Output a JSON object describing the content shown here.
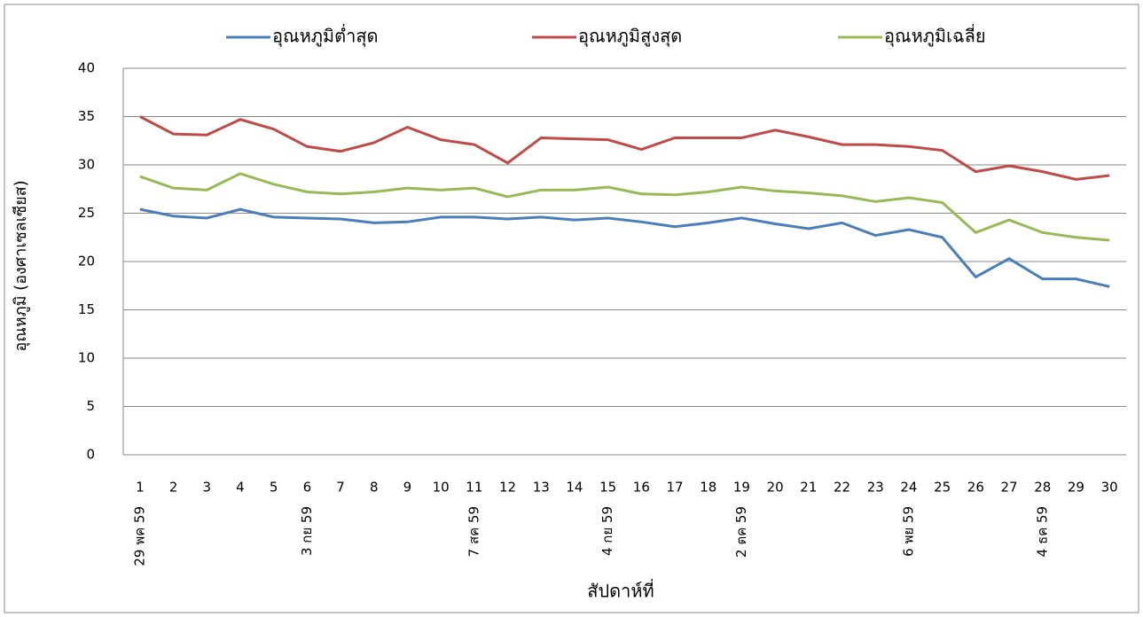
{
  "chart_data": {
    "type": "line",
    "x_label": "สัปดาห์ที่",
    "y_label": "อุณหภูมิ (องศาเซลเซียส)",
    "categories": [
      "1",
      "2",
      "3",
      "4",
      "5",
      "6",
      "7",
      "8",
      "9",
      "10",
      "11",
      "12",
      "13",
      "14",
      "15",
      "16",
      "17",
      "18",
      "19",
      "20",
      "21",
      "22",
      "23",
      "24",
      "25",
      "26",
      "27",
      "28",
      "29",
      "30"
    ],
    "date_labels": [
      "29 พค 59",
      null,
      null,
      null,
      null,
      "3 กย 59",
      null,
      null,
      null,
      null,
      "7 สค 59",
      null,
      null,
      null,
      "4 กย 59",
      null,
      null,
      null,
      "2 ตค 59",
      null,
      null,
      null,
      null,
      "6 พย 59",
      null,
      null,
      null,
      "4 ธค 59",
      null,
      null
    ],
    "series": [
      {
        "name": "อุณหภูมิต่ำสุด",
        "color": "#4a7ebb",
        "values": [
          25.4,
          24.7,
          24.5,
          25.4,
          24.6,
          24.5,
          24.4,
          24.0,
          24.1,
          24.6,
          24.6,
          24.4,
          24.6,
          24.3,
          24.5,
          24.1,
          23.6,
          24.0,
          24.5,
          23.9,
          23.4,
          24.0,
          22.7,
          23.3,
          22.5,
          18.4,
          20.3,
          18.2,
          18.2,
          17.4
        ]
      },
      {
        "name": "อุณหภูมิสูงสุด",
        "color": "#be4b48",
        "values": [
          35.0,
          33.2,
          33.1,
          34.7,
          33.7,
          31.9,
          31.4,
          32.3,
          33.9,
          32.6,
          32.1,
          30.2,
          32.8,
          32.7,
          32.6,
          31.6,
          32.8,
          32.8,
          32.8,
          33.6,
          32.9,
          32.1,
          32.1,
          31.9,
          31.5,
          29.3,
          29.9,
          29.3,
          28.5,
          28.9
        ]
      },
      {
        "name": "อุณหภูมิเฉลี่ย",
        "color": "#98b954",
        "values": [
          28.8,
          27.6,
          27.4,
          29.1,
          28.0,
          27.2,
          27.0,
          27.2,
          27.6,
          27.4,
          27.6,
          26.7,
          27.4,
          27.4,
          27.7,
          27.0,
          26.9,
          27.2,
          27.7,
          27.3,
          27.1,
          26.8,
          26.2,
          26.6,
          26.1,
          23.0,
          24.3,
          23.0,
          22.5,
          22.2
        ]
      }
    ],
    "ylim": [
      0,
      40
    ],
    "yticks": [
      0,
      5,
      10,
      15,
      20,
      25,
      30,
      35,
      40
    ],
    "grid": true,
    "legend": "top"
  }
}
